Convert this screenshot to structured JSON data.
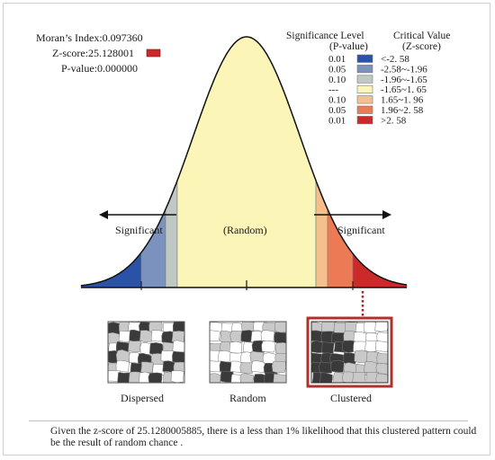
{
  "stats": {
    "morans_index": "Moran’s Index:0.097360",
    "z_score": "Z-score:25.128001",
    "p_value": "P-value:0.000000"
  },
  "legend": {
    "header_significance": "Significance Level",
    "header_significance_sub": "(P-value)",
    "header_critical": "Critical Value",
    "header_critical_sub": "(Z-score)",
    "rows": [
      {
        "p": "0.01",
        "z": "<-2. 58",
        "color": "#2a53a8"
      },
      {
        "p": "0.05",
        "z": "-2.58~-1.96",
        "color": "#7a92bd"
      },
      {
        "p": "0.10",
        "z": "-1.96~-1.65",
        "color": "#bfc8c2"
      },
      {
        "p": "---",
        "z": "-1.65~1. 65",
        "color": "#fbf5b8"
      },
      {
        "p": "0.10",
        "z": "1.65~1. 96",
        "color": "#f6c08e"
      },
      {
        "p": "0.05",
        "z": "1.96~2. 58",
        "color": "#ec7a54"
      },
      {
        "p": "0.01",
        "z": ">2. 58",
        "color": "#cc2a2a"
      }
    ]
  },
  "curve": {
    "left_label": "Significant",
    "center_label": "(Random)",
    "right_label": "Significant"
  },
  "maps": [
    {
      "label": "Dispersed"
    },
    {
      "label": "Random"
    },
    {
      "label": "Clustered"
    }
  ],
  "caption": "Given the z-score of 25.1280005885, there is a less than 1% likelihood that this clustered pattern could be the result of random chance ."
}
